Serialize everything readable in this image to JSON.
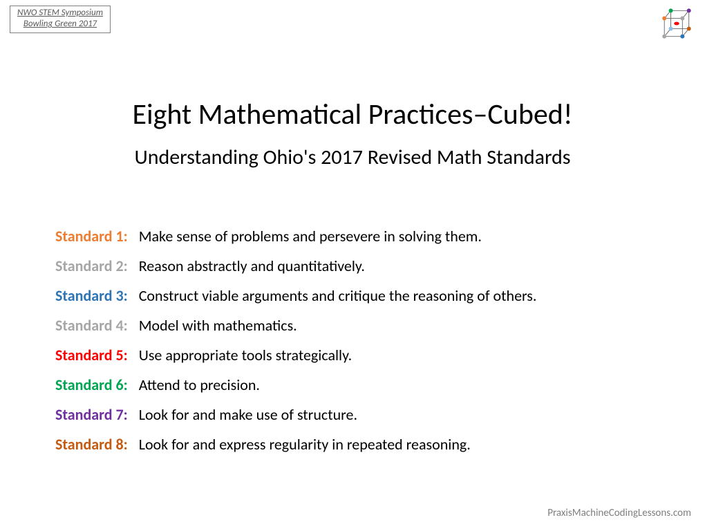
{
  "corner": {
    "line1": "NWO STEM Symposium",
    "line2": "Bowling Green 2017"
  },
  "title": "Eight Mathematical Practices–Cubed!",
  "subtitle": "Understanding Ohio's 2017 Revised Math Standards",
  "standards": [
    {
      "label": "Standard 1:",
      "color": "#ED7D31",
      "text": "Make sense of problems and persevere in solving them."
    },
    {
      "label": "Standard 2:",
      "color": "#A6A6A6",
      "text": "Reason abstractly and quantitatively."
    },
    {
      "label": "Standard 3:",
      "color": "#2E75B6",
      "text": "Construct viable arguments and critique the reasoning of others."
    },
    {
      "label": "Standard 4:",
      "color": "#A6A6A6",
      "text": "Model with mathematics."
    },
    {
      "label": "Standard 5:",
      "color": "#FF0000",
      "text": "Use appropriate tools strategically."
    },
    {
      "label": "Standard 6:",
      "color": "#00A651",
      "text": "Attend to precision."
    },
    {
      "label": "Standard 7:",
      "color": "#7030A0",
      "text": "Look for and make use of structure."
    },
    {
      "label": "Standard 8:",
      "color": "#C55A11",
      "text": "Look for and express regularity in repeated reasoning."
    }
  ],
  "footer": "PraxisMachineCodingLessons.com",
  "cube": {
    "stroke": "#666666",
    "vertex_colors": [
      "#ED7D31",
      "#A6A6A6",
      "#2E75B6",
      "#A6A6A6",
      "#00A651",
      "#7030A0",
      "#C55A11",
      "#88C0E8"
    ],
    "center_color": "#FF0000"
  }
}
